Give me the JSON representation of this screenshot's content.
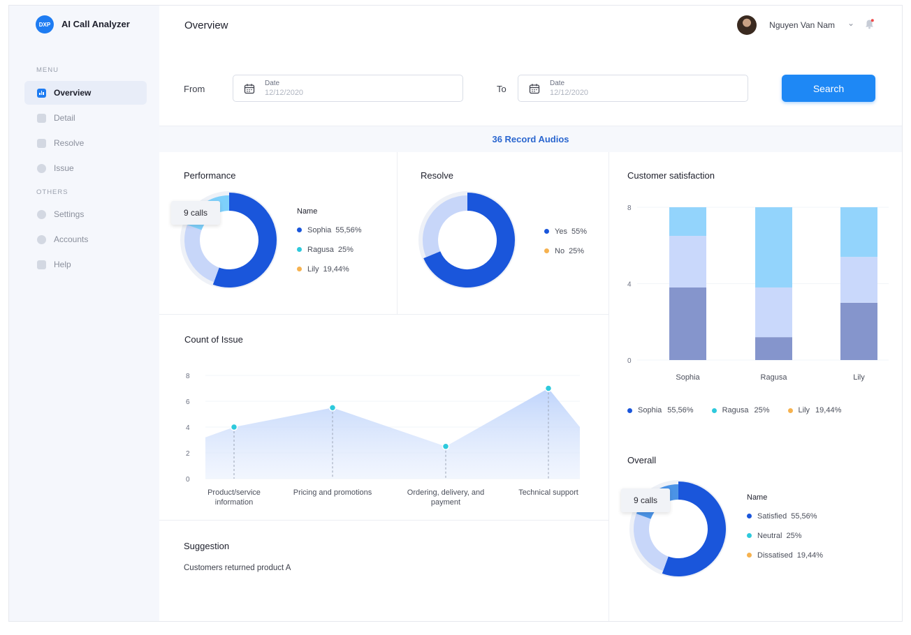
{
  "app": {
    "logo_text": "DXP",
    "title": "AI Call Analyzer"
  },
  "sidebar": {
    "menu_label": "MENU",
    "others_label": "OTHERS",
    "menu_items": [
      {
        "label": "Overview",
        "active": true
      },
      {
        "label": "Detail"
      },
      {
        "label": "Resolve"
      },
      {
        "label": "Issue"
      }
    ],
    "other_items": [
      {
        "label": "Settings"
      },
      {
        "label": "Accounts"
      },
      {
        "label": "Help"
      }
    ]
  },
  "header": {
    "title": "Overview",
    "user_name": "Nguyen Van Nam"
  },
  "filter": {
    "from_label": "From",
    "to_label": "To",
    "date_caption": "Date",
    "from_placeholder": "12/12/2020",
    "to_placeholder": "12/12/2020",
    "search_label": "Search"
  },
  "records_label": "36 Record Audios",
  "colors": {
    "dark_blue": "#1a56db",
    "light_blue": "#c7d6f9",
    "cyan": "#7ed0fb",
    "orange": "#f6b24f",
    "teal": "#2ec9dc",
    "accent": "#1e88f5"
  },
  "performance": {
    "title": "Performance",
    "tooltip": "9 calls",
    "legend_title": "Name",
    "legend": [
      {
        "name": "Sophia",
        "value": "55,56%",
        "color": "#1a56db"
      },
      {
        "name": "Ragusa",
        "value": "25%",
        "color": "#2ec9dc"
      },
      {
        "name": "Lily",
        "value": "19,44%",
        "color": "#f6b24f"
      }
    ]
  },
  "resolve": {
    "title": "Resolve",
    "legend": [
      {
        "name": "Yes",
        "value": "55%",
        "color": "#1a56db"
      },
      {
        "name": "No",
        "value": "25%",
        "color": "#f6b24f"
      }
    ]
  },
  "issue": {
    "title": "Count of Issue",
    "yticks": [
      "8",
      "6",
      "4",
      "2",
      "0"
    ],
    "categories": [
      {
        "line1": "Product/service",
        "line2": "information"
      },
      {
        "line1": "Pricing and promotions",
        "line2": ""
      },
      {
        "line1": "Ordering, delivery, and",
        "line2": "payment"
      },
      {
        "line1": "Technical support",
        "line2": ""
      }
    ]
  },
  "suggestion": {
    "title": "Suggestion",
    "text": "Customers returned product A"
  },
  "satisfaction": {
    "title": "Customer satisfaction",
    "yticks": [
      "8",
      "4",
      "0"
    ],
    "legend": [
      {
        "name": "Sophia",
        "value": "55,56%",
        "color": "#1a56db"
      },
      {
        "name": "Ragusa",
        "value": "25%",
        "color": "#2ec9dc"
      },
      {
        "name": "Lily",
        "value": "19,44%",
        "color": "#f6b24f"
      }
    ]
  },
  "overall": {
    "title": "Overall",
    "tooltip": "9 calls",
    "legend_title": "Name",
    "legend": [
      {
        "name": "Satisfied",
        "value": "55,56%",
        "color": "#1a56db"
      },
      {
        "name": "Neutral",
        "value": "25%",
        "color": "#2ec9dc"
      },
      {
        "name": "Dissatised",
        "value": "19,44%",
        "color": "#f6b24f"
      }
    ]
  },
  "chart_data": [
    {
      "type": "pie",
      "categories": [
        "Sophia",
        "Ragusa",
        "Lily"
      ],
      "values": [
        55.56,
        25,
        19.44
      ],
      "title": "Performance"
    },
    {
      "type": "pie",
      "categories": [
        "Yes",
        "No"
      ],
      "values": [
        55,
        25
      ],
      "title": "Resolve"
    },
    {
      "type": "area",
      "title": "Count of Issue",
      "categories": [
        "Product/service information",
        "Pricing and promotions",
        "Ordering, delivery, and payment",
        "Technical support"
      ],
      "values": [
        4,
        5.5,
        2.5,
        7
      ],
      "ylim": [
        0,
        8
      ]
    },
    {
      "type": "bar",
      "title": "Customer satisfaction",
      "categories": [
        "Sophia",
        "Ragusa",
        "Lily"
      ],
      "ylim": [
        0,
        8
      ],
      "stacked": true,
      "series": [
        {
          "values": [
            3.8,
            1.2,
            3.0
          ],
          "color": "#8595cc"
        },
        {
          "values": [
            2.7,
            2.6,
            2.4
          ],
          "color": "#c9d8fb"
        },
        {
          "values": [
            1.5,
            4.2,
            2.6
          ],
          "color": "#93d4fc"
        }
      ]
    },
    {
      "type": "pie",
      "categories": [
        "Satisfied",
        "Neutral",
        "Dissatised"
      ],
      "values": [
        55.56,
        25,
        19.44
      ],
      "title": "Overall"
    }
  ]
}
